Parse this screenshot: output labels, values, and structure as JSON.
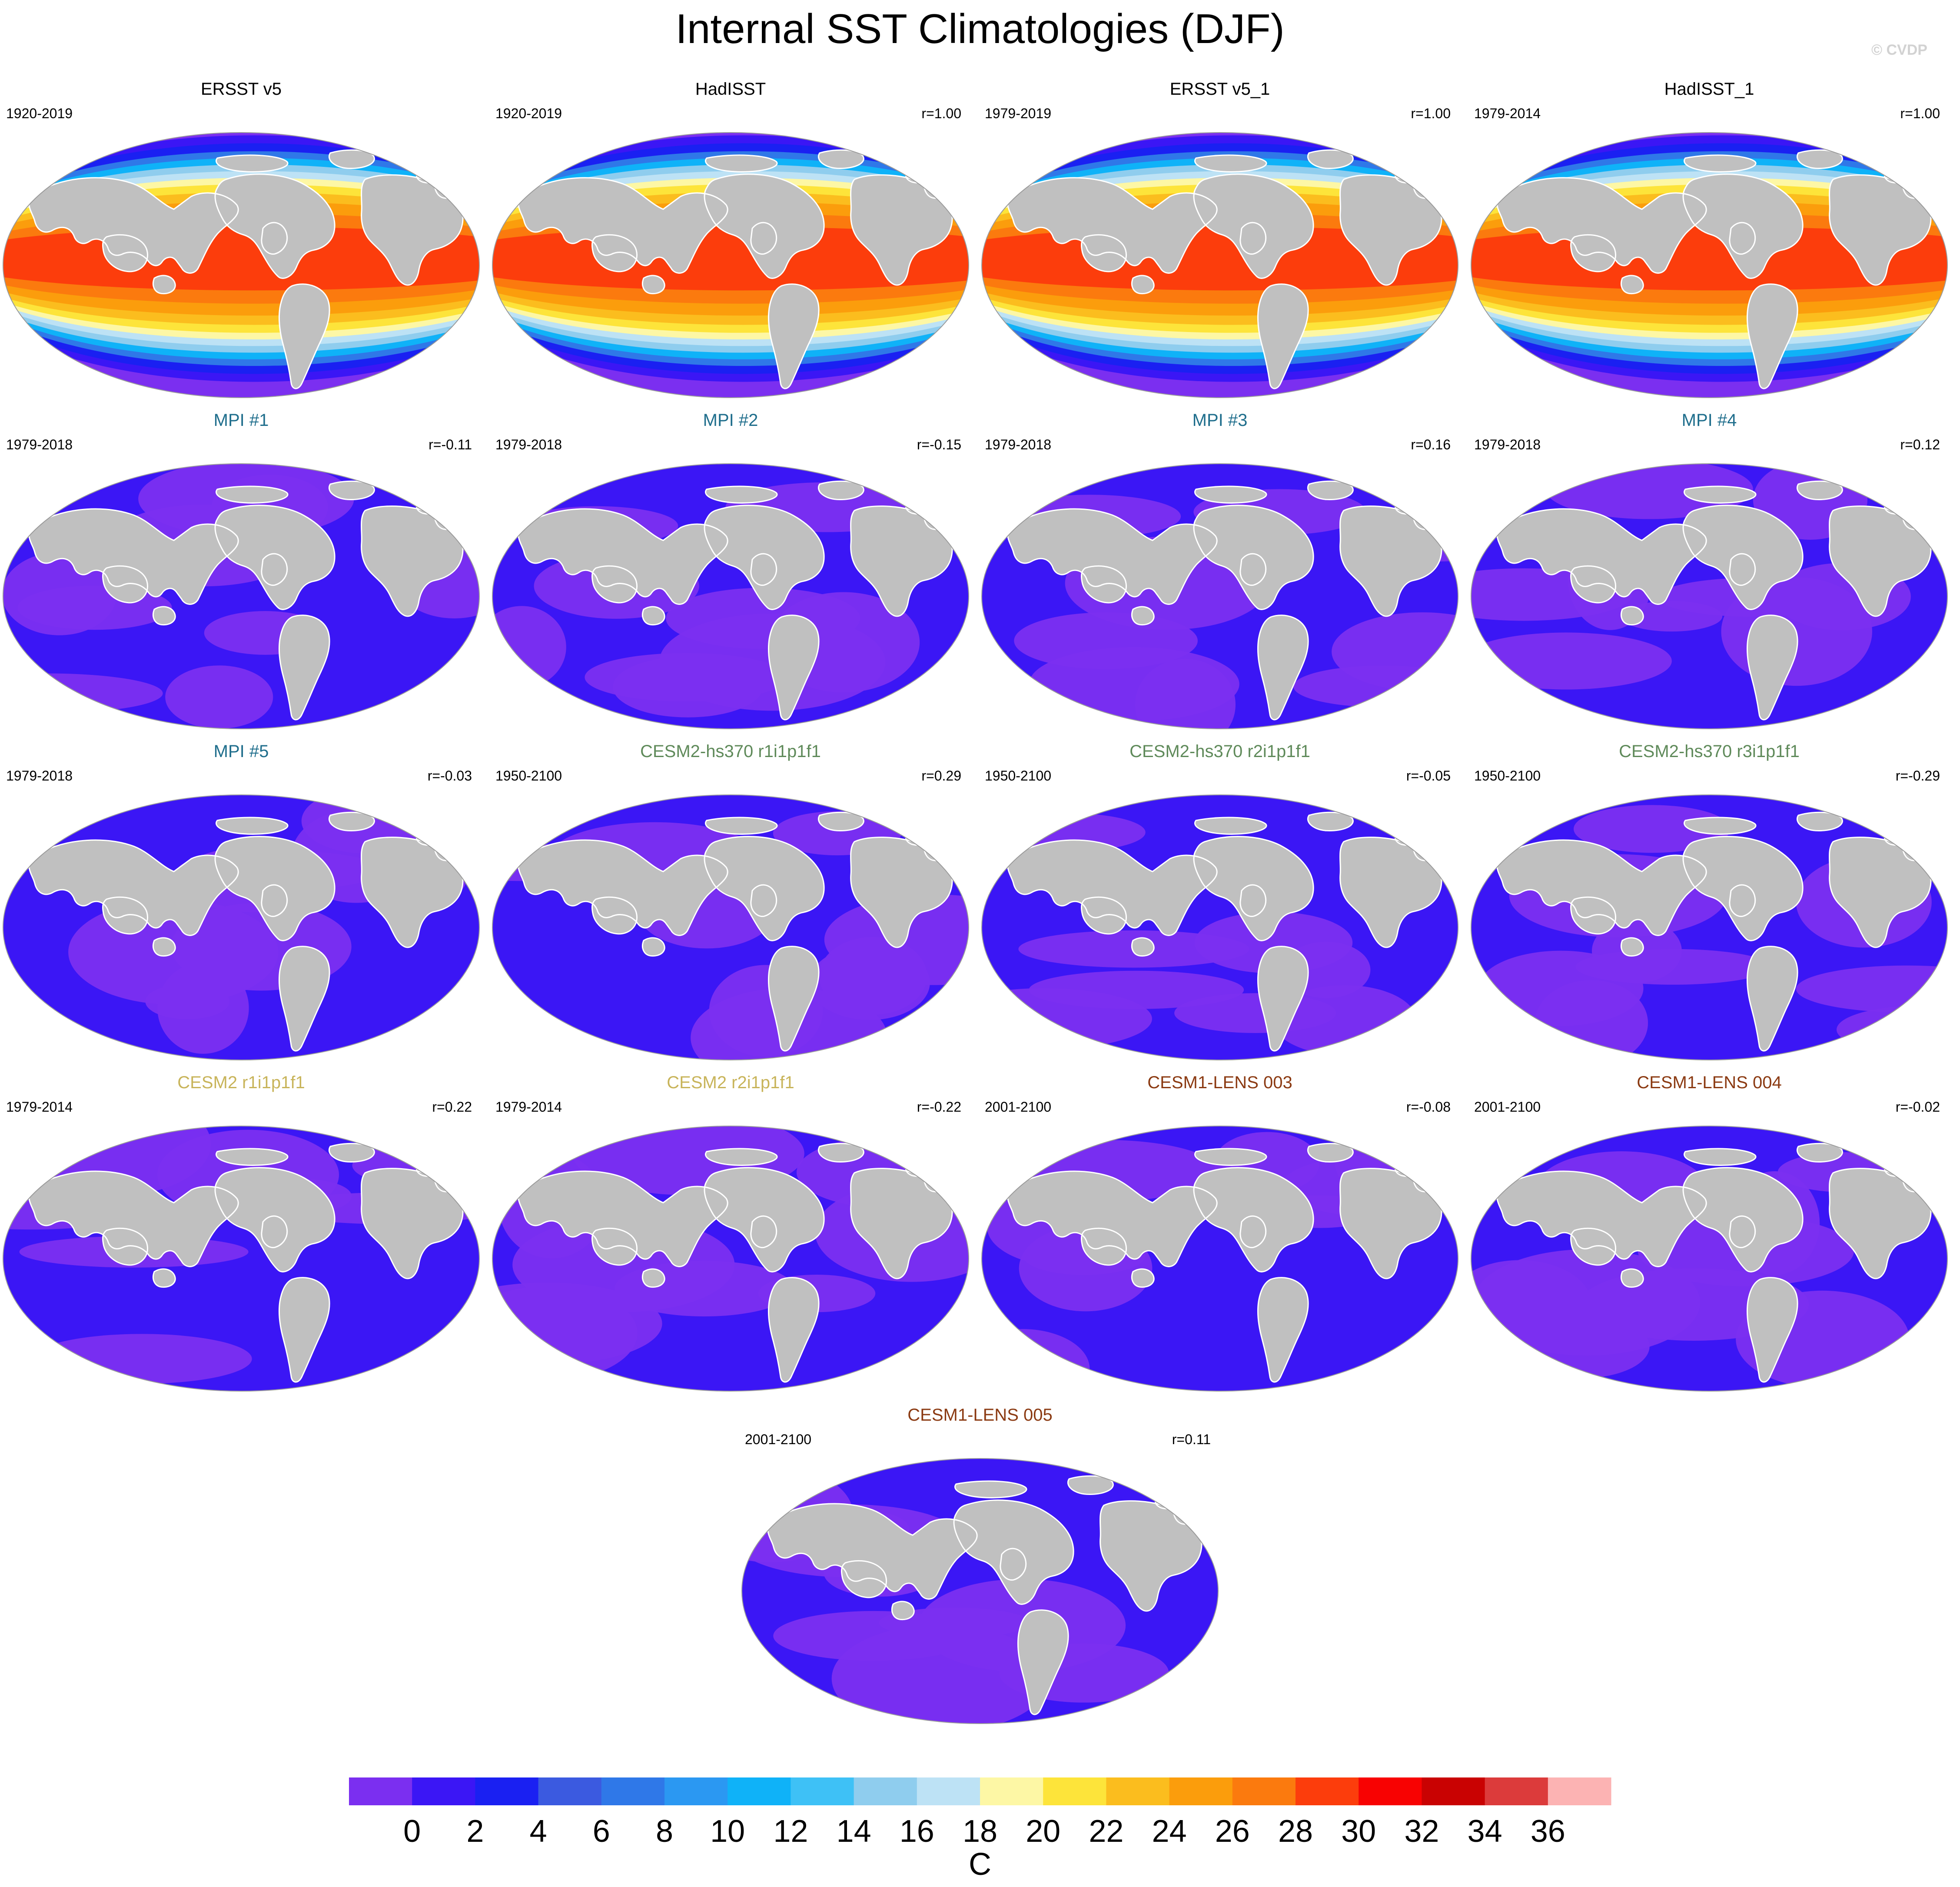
{
  "title": "Internal SST Climatologies (DJF)",
  "credit": "© CVDP",
  "chart_data": {
    "type": "heatmap",
    "projection": "global map (Robinson-like ellipse)",
    "variable_units": "C",
    "panels": [
      {
        "title": "ERSST v5",
        "years": "1920-2019",
        "r": "",
        "title_color": "#000000",
        "field": "obs"
      },
      {
        "title": "HadISST",
        "years": "1920-2019",
        "r": "r=1.00",
        "title_color": "#000000",
        "field": "obs"
      },
      {
        "title": "ERSST v5_1",
        "years": "1979-2019",
        "r": "r=1.00",
        "title_color": "#000000",
        "field": "obs"
      },
      {
        "title": "HadISST_1",
        "years": "1979-2014",
        "r": "r=1.00",
        "title_color": "#000000",
        "field": "obs"
      },
      {
        "title": "MPI #1",
        "years": "1979-2018",
        "r": "r=-0.11",
        "title_color": "#1f6e8c",
        "field": "model"
      },
      {
        "title": "MPI #2",
        "years": "1979-2018",
        "r": "r=-0.15",
        "title_color": "#1f6e8c",
        "field": "model"
      },
      {
        "title": "MPI #3",
        "years": "1979-2018",
        "r": "r=0.16",
        "title_color": "#1f6e8c",
        "field": "model"
      },
      {
        "title": "MPI #4",
        "years": "1979-2018",
        "r": "r=0.12",
        "title_color": "#1f6e8c",
        "field": "model"
      },
      {
        "title": "MPI #5",
        "years": "1979-2018",
        "r": "r=-0.03",
        "title_color": "#1f6e8c",
        "field": "model"
      },
      {
        "title": "CESM2-hs370 r1i1p1f1",
        "years": "1950-2100",
        "r": "r=0.29",
        "title_color": "#5f8a5a",
        "field": "model"
      },
      {
        "title": "CESM2-hs370 r2i1p1f1",
        "years": "1950-2100",
        "r": "r=-0.05",
        "title_color": "#5f8a5a",
        "field": "model"
      },
      {
        "title": "CESM2-hs370 r3i1p1f1",
        "years": "1950-2100",
        "r": "r=-0.29",
        "title_color": "#5f8a5a",
        "field": "model"
      },
      {
        "title": "CESM2 r1i1p1f1",
        "years": "1979-2014",
        "r": "r=0.22",
        "title_color": "#c8b45a",
        "field": "model"
      },
      {
        "title": "CESM2 r2i1p1f1",
        "years": "1979-2014",
        "r": "r=-0.22",
        "title_color": "#c8b45a",
        "field": "model"
      },
      {
        "title": "CESM1-LENS 003",
        "years": "2001-2100",
        "r": "r=-0.08",
        "title_color": "#8b3a12",
        "field": "model"
      },
      {
        "title": "CESM1-LENS 004",
        "years": "2001-2100",
        "r": "r=-0.02",
        "title_color": "#8b3a12",
        "field": "model"
      },
      {
        "title": "CESM1-LENS 005",
        "years": "2001-2100",
        "r": "r=0.11",
        "title_color": "#8b3a12",
        "field": "model"
      }
    ],
    "colorbar": {
      "label": "C",
      "ticks": [
        "0",
        "2",
        "4",
        "6",
        "8",
        "10",
        "12",
        "14",
        "16",
        "18",
        "20",
        "22",
        "24",
        "26",
        "28",
        "30",
        "32",
        "34",
        "36"
      ],
      "colors": [
        "#7b2ff0",
        "#3b16f5",
        "#1a20f2",
        "#3b5ae0",
        "#2f78e8",
        "#2b98f2",
        "#0fb2f8",
        "#3ec1f6",
        "#8fcdee",
        "#bde2f5",
        "#fdf7a5",
        "#fde43a",
        "#fbbd1e",
        "#fb9d0c",
        "#fb7a0e",
        "#fc3d0c",
        "#f80202",
        "#c90202",
        "#dc3b3b",
        "#fcb3b3"
      ]
    }
  }
}
